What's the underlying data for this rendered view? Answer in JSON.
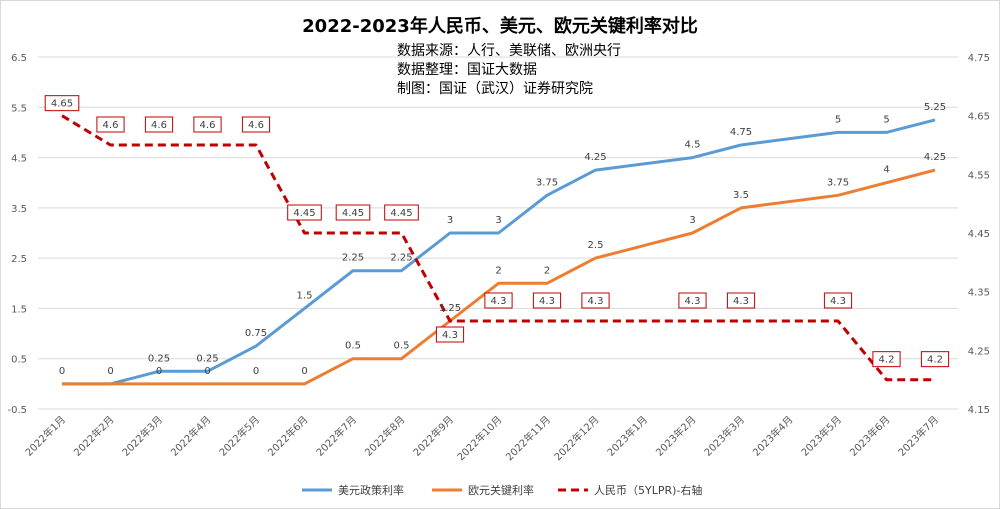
{
  "chart_data": {
    "type": "line",
    "title": "2022-2023年人民币、美元、欧元关键利率对比",
    "notes": [
      "数据来源：人行、美联储、欧洲央行",
      "数据整理：国证大数据",
      "制图：国证（武汉）证券研究院"
    ],
    "categories": [
      "2022年1月",
      "2022年2月",
      "2022年3月",
      "2022年4月",
      "2022年5月",
      "2022年6月",
      "2022年7月",
      "2022年8月",
      "2022年9月",
      "2022年10月",
      "2022年11月",
      "2022年12月",
      "2023年1月",
      "2023年2月",
      "2023年3月",
      "2023年4月",
      "2023年5月",
      "2023年6月",
      "2023年7月"
    ],
    "left_axis": {
      "min": -0.5,
      "max": 6.5,
      "ticks": [
        "-0.5",
        "0.5",
        "1.5",
        "2.5",
        "3.5",
        "4.5",
        "5.5",
        "6.5"
      ]
    },
    "right_axis": {
      "min": 4.15,
      "max": 4.75,
      "ticks": [
        "4.15",
        "4.25",
        "4.35",
        "4.45",
        "4.55",
        "4.65",
        "4.75"
      ]
    },
    "series": [
      {
        "name": "美元政策利率",
        "axis": "left",
        "color": "#5b9bd5",
        "style": "solid",
        "values": [
          0,
          0,
          0.25,
          0.25,
          0.75,
          1.5,
          2.25,
          2.25,
          3,
          3,
          3.75,
          4.25,
          null,
          4.5,
          4.75,
          null,
          5,
          5,
          5.25
        ],
        "labels": [
          "0",
          "0",
          "0.25",
          "0.25",
          "0.75",
          "1.5",
          "2.25",
          "2.25",
          "3",
          "3",
          "3.75",
          "4.25",
          "",
          "4.5",
          "4.75",
          "",
          "5",
          "5",
          "5.25"
        ]
      },
      {
        "name": "欧元关键利率",
        "axis": "left",
        "color": "#ed7d31",
        "style": "solid",
        "values": [
          0,
          0,
          0,
          0,
          0,
          0,
          0.5,
          0.5,
          1.25,
          2,
          2,
          2.5,
          null,
          3,
          3.5,
          null,
          3.75,
          4,
          4.25
        ],
        "labels": [
          "",
          "",
          "0",
          "0",
          "0",
          "0",
          "0.5",
          "0.5",
          "1.25",
          "2",
          "2",
          "2.5",
          "",
          "3",
          "3.5",
          "",
          "3.75",
          "4",
          "4.25"
        ]
      },
      {
        "name": "人民币（5YLPR)-右轴",
        "axis": "right",
        "color": "#c00000",
        "style": "dashed",
        "values": [
          4.65,
          4.6,
          4.6,
          4.6,
          4.6,
          4.45,
          4.45,
          4.45,
          4.3,
          4.3,
          4.3,
          4.3,
          null,
          4.3,
          4.3,
          null,
          4.3,
          4.2,
          4.2
        ],
        "labels": [
          "4.65",
          "4.6",
          "4.6",
          "4.6",
          "4.6",
          "4.45",
          "4.45",
          "4.45",
          "4.3",
          "4.3",
          "4.3",
          "4.3",
          "",
          "4.3",
          "4.3",
          "",
          "4.3",
          "4.2",
          "4.2"
        ]
      }
    ],
    "grid": true,
    "legend_position": "bottom"
  }
}
